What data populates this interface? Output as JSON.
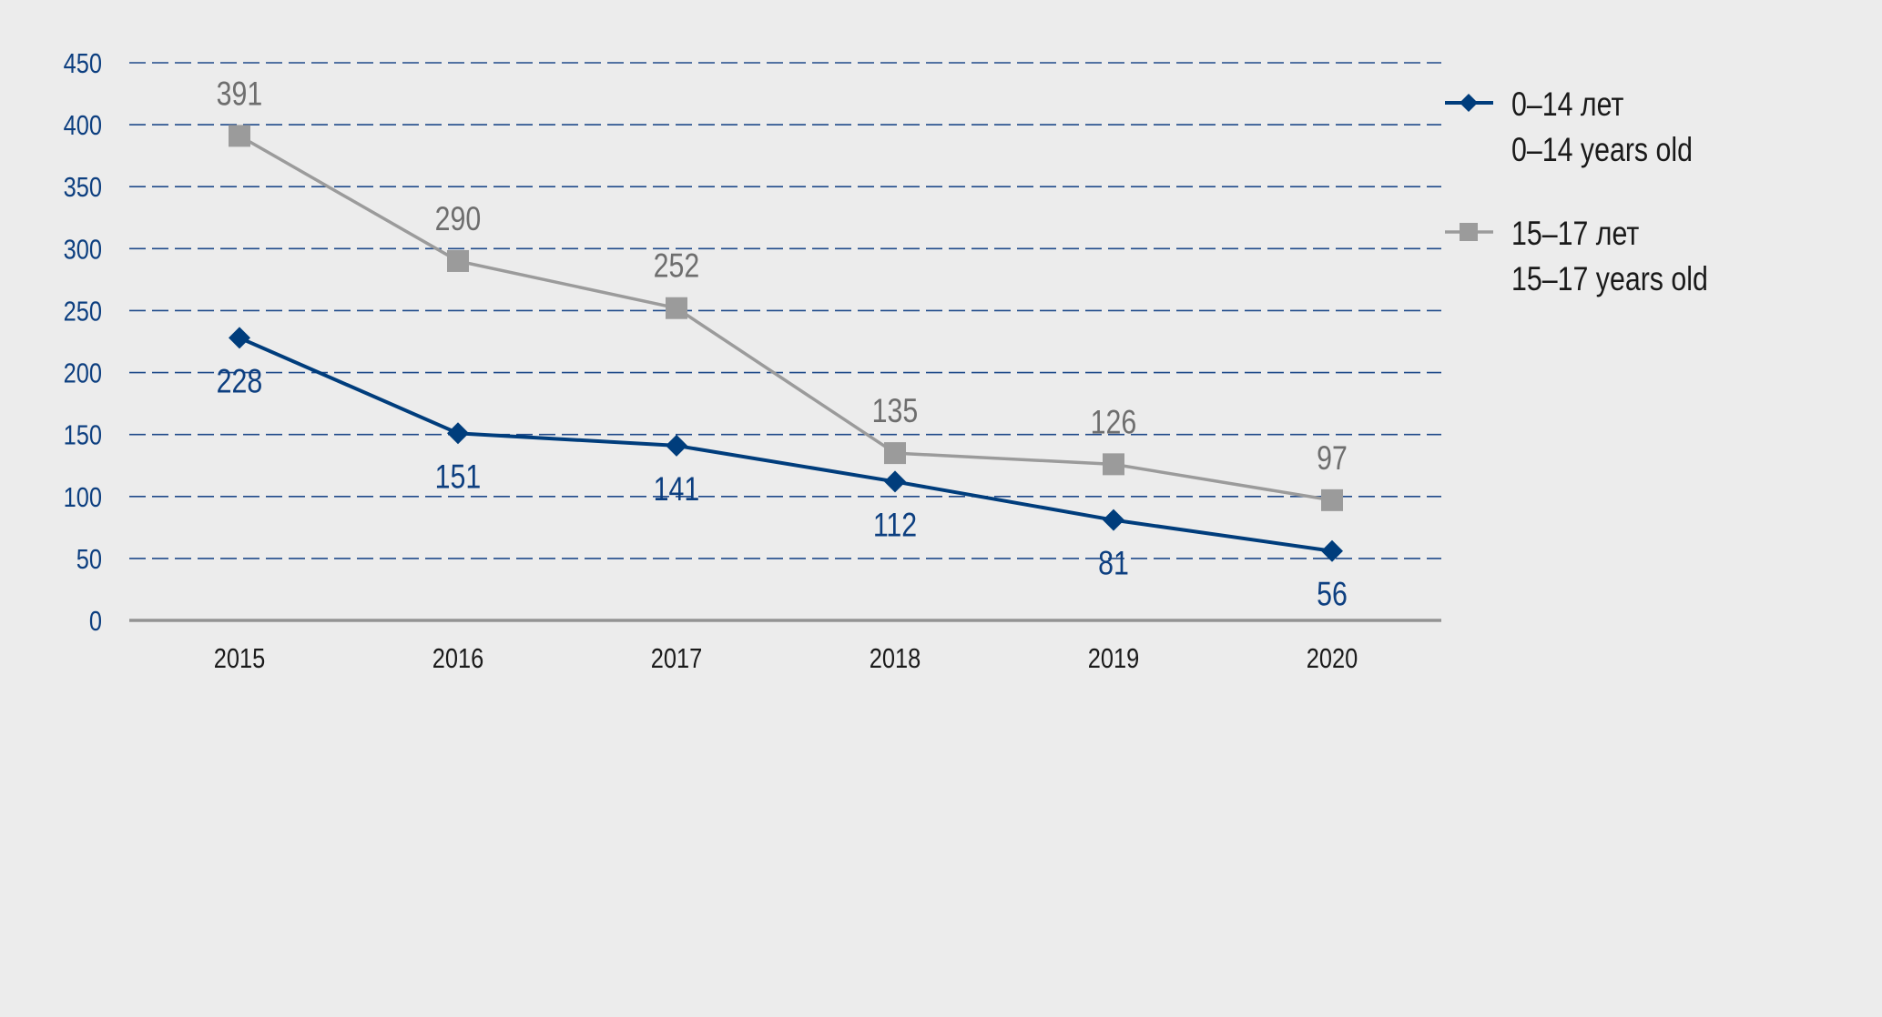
{
  "chart_data": {
    "type": "line",
    "title": "",
    "xlabel": "",
    "ylabel": "",
    "categories": [
      "2015",
      "2016",
      "2017",
      "2018",
      "2019",
      "2020"
    ],
    "ylim": [
      0,
      450
    ],
    "yticks": [
      0,
      50,
      100,
      150,
      200,
      250,
      300,
      350,
      400,
      450
    ],
    "ytick_labels": [
      "0",
      "50",
      "100",
      "150",
      "200",
      "250",
      "300",
      "350",
      "400",
      "450"
    ],
    "grid": true,
    "legend_position": "right",
    "series": [
      {
        "name_line1": "0–14 лет",
        "name_line2": "0–14 years old",
        "values": [
          228,
          151,
          141,
          112,
          81,
          56
        ],
        "labels": [
          "228",
          "151",
          "141",
          "112",
          "81",
          "56"
        ],
        "color": "#003D7C",
        "marker": "diamond",
        "label_position": "below"
      },
      {
        "name_line1": "15–17 лет",
        "name_line2": "15–17 years old",
        "values": [
          391,
          290,
          252,
          135,
          126,
          97
        ],
        "labels": [
          "391",
          "290",
          "252",
          "135",
          "126",
          "97"
        ],
        "color": "#9B9B9B",
        "marker": "square",
        "label_position": "above"
      }
    ]
  }
}
